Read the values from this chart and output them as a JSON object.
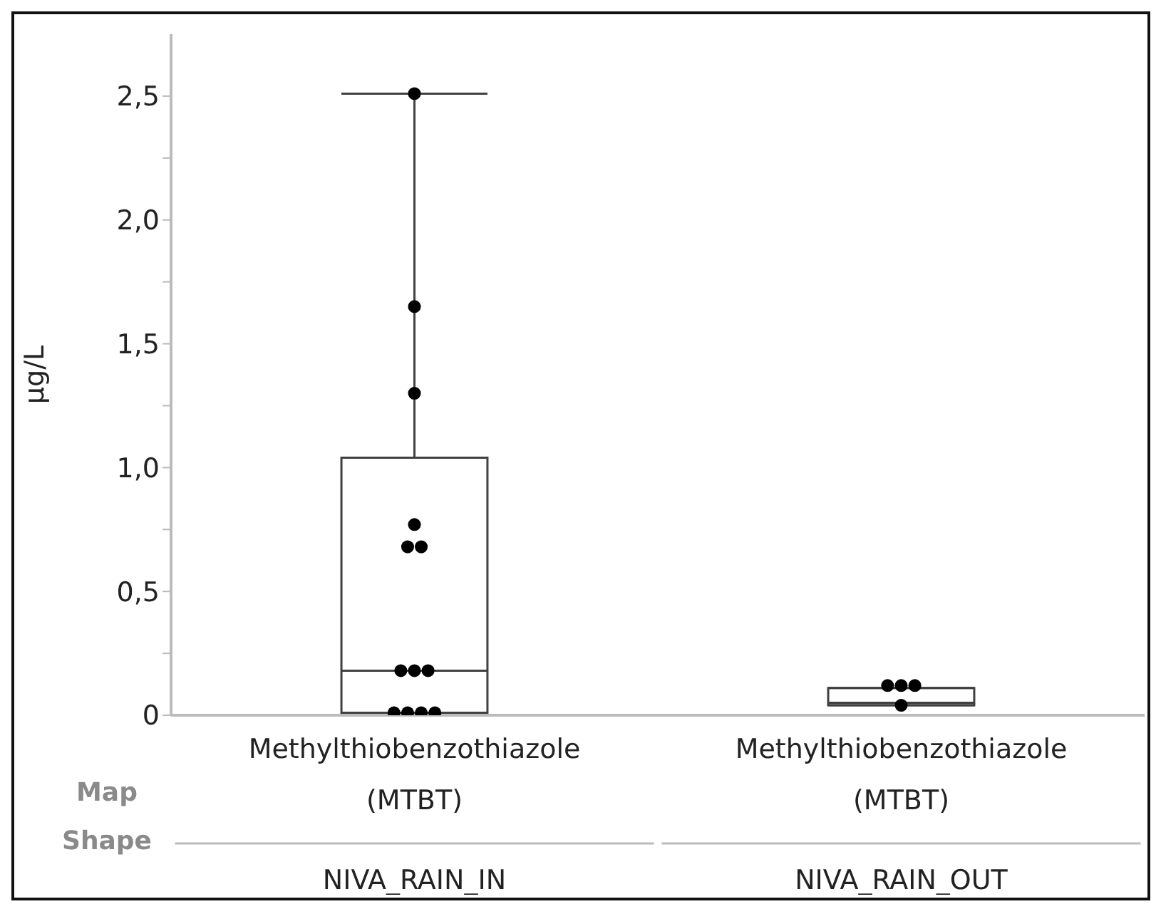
{
  "chart_data": {
    "type": "box",
    "ylabel": "µg/L",
    "categories": [
      "NIVA_RAIN_IN",
      "NIVA_RAIN_OUT"
    ],
    "series": [
      {
        "color": "#404040",
        "boxes": [
          {
            "low": 0.01,
            "q1": 0.01,
            "median": 0.18,
            "q3": 1.04,
            "high": 2.51
          },
          {
            "low": 0.04,
            "q1": 0.04,
            "median": 0.05,
            "q3": 0.11,
            "high": 0.11
          }
        ]
      },
      {
        "type": "scatter",
        "color": "#000000",
        "x": [
          "NIVA_RAIN_IN",
          "NIVA_RAIN_IN",
          "NIVA_RAIN_IN",
          "NIVA_RAIN_IN",
          "NIVA_RAIN_IN",
          "NIVA_RAIN_IN",
          "NIVA_RAIN_IN",
          "NIVA_RAIN_IN",
          "NIVA_RAIN_IN",
          "NIVA_RAIN_IN",
          "NIVA_RAIN_IN",
          "NIVA_RAIN_IN",
          "NIVA_RAIN_IN",
          "NIVA_RAIN_OUT",
          "NIVA_RAIN_OUT",
          "NIVA_RAIN_OUT",
          "NIVA_RAIN_OUT"
        ],
        "values": [
          2.51,
          1.65,
          1.3,
          0.77,
          0.68,
          0.68,
          0.18,
          0.18,
          0.18,
          0.01,
          0.01,
          0.01,
          0.01,
          0.12,
          0.12,
          0.12,
          0.04
        ]
      }
    ],
    "ylim": [
      0,
      2.75
    ],
    "yticks": [
      {
        "value": 0,
        "label": "0"
      },
      {
        "value": 0.25,
        "label": null
      },
      {
        "value": 0.5,
        "label": "0,5"
      },
      {
        "value": 0.75,
        "label": null
      },
      {
        "value": 1,
        "label": "1,0"
      },
      {
        "value": 1.25,
        "label": null
      },
      {
        "value": 1.5,
        "label": "1,5"
      },
      {
        "value": 1.75,
        "label": null
      },
      {
        "value": 2,
        "label": "2,0"
      },
      {
        "value": 2.25,
        "label": null
      },
      {
        "value": 2.5,
        "label": "2,5"
      }
    ],
    "marker": "circle",
    "legend": false,
    "grid": false,
    "annotations": [
      "Methylthiobenzothiazole (MTBT)",
      "Methylthiobenzothiazole (MTBT)",
      "Map Shape"
    ]
  }
}
